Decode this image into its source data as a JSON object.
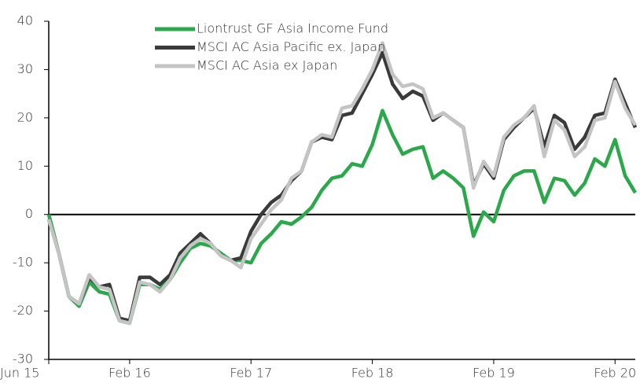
{
  "chart_data": {
    "type": "line",
    "categories": [
      "Jun 15",
      null,
      null,
      null,
      null,
      null,
      null,
      null,
      "Feb 16",
      null,
      null,
      null,
      null,
      null,
      null,
      null,
      null,
      null,
      null,
      null,
      "Feb 17",
      null,
      null,
      null,
      null,
      null,
      null,
      null,
      null,
      null,
      null,
      null,
      "Feb 18",
      null,
      null,
      null,
      null,
      null,
      null,
      null,
      null,
      null,
      null,
      null,
      "Feb 19",
      null,
      null,
      null,
      null,
      null,
      null,
      null,
      null,
      null,
      null,
      null,
      "Feb 20",
      null,
      null
    ],
    "series": [
      {
        "name": "Liontrust GF Asia Income Fund",
        "color": "#2aa84a",
        "values": [
          0,
          -8,
          -17,
          -19,
          -14,
          -16,
          -16.5,
          -22,
          -22.5,
          -14.5,
          -14.5,
          -15.5,
          -13.5,
          -10,
          -7,
          -6,
          -6.5,
          -8,
          -9.5,
          -9.5,
          -10,
          -6,
          -4,
          -1.5,
          -2,
          -0.5,
          1.5,
          5,
          7.5,
          8,
          10.5,
          10,
          14.5,
          21.5,
          16.5,
          12.5,
          13.5,
          14,
          7.5,
          9,
          7.5,
          5.5,
          -4.5,
          0.5,
          -1.5,
          5,
          8,
          9,
          9,
          2.5,
          7.5,
          7,
          4,
          6.5,
          11.5,
          10,
          15.5,
          8,
          4.5
        ]
      },
      {
        "name": "MSCI AC Asia Pacific ex. Japan",
        "color": "#3a3a3a",
        "values": [
          -1,
          -8,
          -17,
          -18.5,
          -13,
          -15,
          -14.5,
          -21.5,
          -22,
          -13,
          -13,
          -14.5,
          -12.5,
          -8,
          -6,
          -4,
          -6,
          -8.5,
          -9.5,
          -9,
          -3.5,
          0,
          2.5,
          4,
          7,
          9,
          15,
          16,
          15.5,
          20.5,
          21,
          25,
          29,
          33.5,
          27,
          24,
          25.5,
          24.5,
          19.5,
          21,
          19.5,
          18,
          6,
          10.5,
          7.5,
          15.5,
          18,
          20,
          22,
          14,
          20.5,
          19,
          13.5,
          16,
          20.5,
          21,
          28,
          23,
          18
        ]
      },
      {
        "name": "MSCI AC Asia ex Japan",
        "color": "#c4c4c4",
        "values": [
          -1,
          -8,
          -17,
          -18.5,
          -12.5,
          -15,
          -15.5,
          -22,
          -22.5,
          -14,
          -14.5,
          -16,
          -13.5,
          -9,
          -6.5,
          -5,
          -6,
          -8.5,
          -9.5,
          -11,
          -5,
          -2,
          1,
          3,
          7.5,
          9,
          15,
          16.5,
          16,
          22,
          22.5,
          26,
          30,
          35.5,
          29,
          26.5,
          27,
          26,
          20,
          21,
          19.5,
          18,
          5.5,
          11,
          8,
          16,
          18.5,
          20,
          22.5,
          12,
          19.5,
          17.5,
          12,
          14,
          19.5,
          20,
          27.5,
          22,
          18.5
        ]
      }
    ],
    "ylim": [
      -30,
      40
    ],
    "yticks": [
      -30,
      -20,
      -10,
      0,
      10,
      20,
      30,
      40
    ],
    "legend": "top"
  }
}
